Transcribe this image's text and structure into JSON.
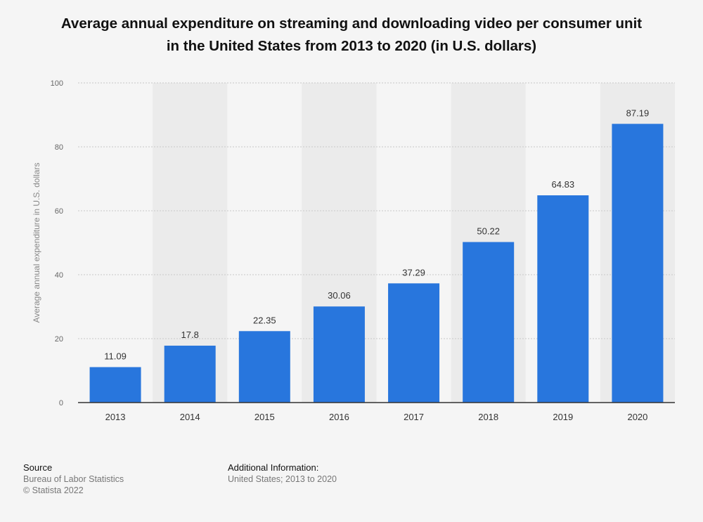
{
  "chart_data": {
    "type": "bar",
    "title_line1": "Average annual expenditure on streaming and downloading video per consumer unit",
    "title_line2": "in the United States from 2013 to 2020 (in U.S. dollars)",
    "categories": [
      "2013",
      "2014",
      "2015",
      "2016",
      "2017",
      "2018",
      "2019",
      "2020"
    ],
    "values": [
      11.09,
      17.8,
      22.35,
      30.06,
      37.29,
      50.22,
      64.83,
      87.19
    ],
    "value_labels": [
      "11.09",
      "17.8",
      "22.35",
      "30.06",
      "37.29",
      "50.22",
      "64.83",
      "87.19"
    ],
    "xlabel": "",
    "ylabel": "Average annual expenditure in U.S. dollars",
    "ylim": [
      0,
      100
    ],
    "yticks": [
      0,
      20,
      40,
      60,
      80,
      100
    ],
    "grid": true,
    "colors": {
      "bar": "#2876dd",
      "band": "#ebebeb",
      "grid": "#c8c8c8",
      "axis": "#333333"
    }
  },
  "footer": {
    "source_heading": "Source",
    "source_line1": "Bureau of Labor Statistics",
    "source_line2": "© Statista 2022",
    "info_heading": "Additional Information:",
    "info_line1": "United States; 2013 to 2020"
  }
}
